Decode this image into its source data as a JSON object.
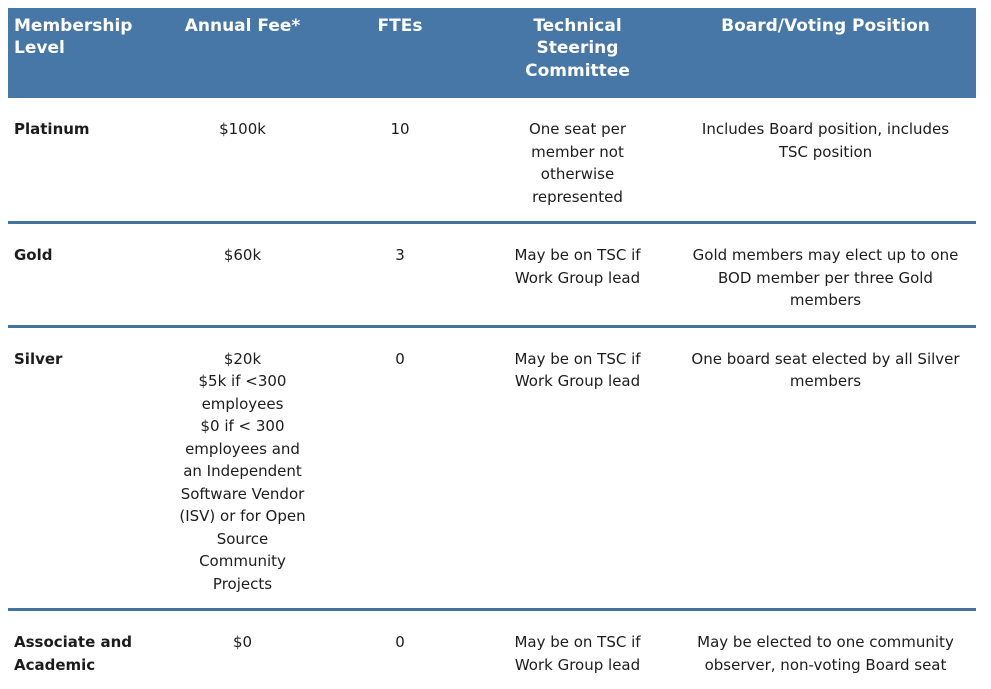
{
  "colors": {
    "header_bg": "#4677A6",
    "header_text": "#FFFFFF",
    "row_divider": "#44739E",
    "body_text": "#1C1C1C"
  },
  "header": {
    "membership_level": "Membership Level",
    "annual_fee": "Annual Fee*",
    "ftes": "FTEs",
    "tsc": "Technical Steering Committee",
    "board": "Board/Voting Position"
  },
  "rows": [
    {
      "level": "Platinum",
      "fee_lines": [
        "$100k"
      ],
      "ftes": "10",
      "tsc": "One seat per member not otherwise represented",
      "board": "Includes Board position, includes TSC position"
    },
    {
      "level": "Gold",
      "fee_lines": [
        "$60k"
      ],
      "ftes": "3",
      "tsc": "May be on TSC if Work Group lead",
      "board": "Gold members may elect up to one BOD member per three Gold members"
    },
    {
      "level": "Silver",
      "fee_lines": [
        "$20k",
        "$5k if <300 employees",
        "$0 if < 300 employees and an Independent Software Vendor (ISV) or for Open Source Community Projects"
      ],
      "ftes": "0",
      "tsc": "May be on TSC if Work Group lead",
      "board": "One board seat elected by all Silver members"
    },
    {
      "level": "Associate and Academic",
      "fee_lines": [
        "$0"
      ],
      "ftes": "0",
      "tsc": "May be on TSC if Work Group lead",
      "board": "May be elected to one community observer, non-voting Board seat"
    }
  ]
}
